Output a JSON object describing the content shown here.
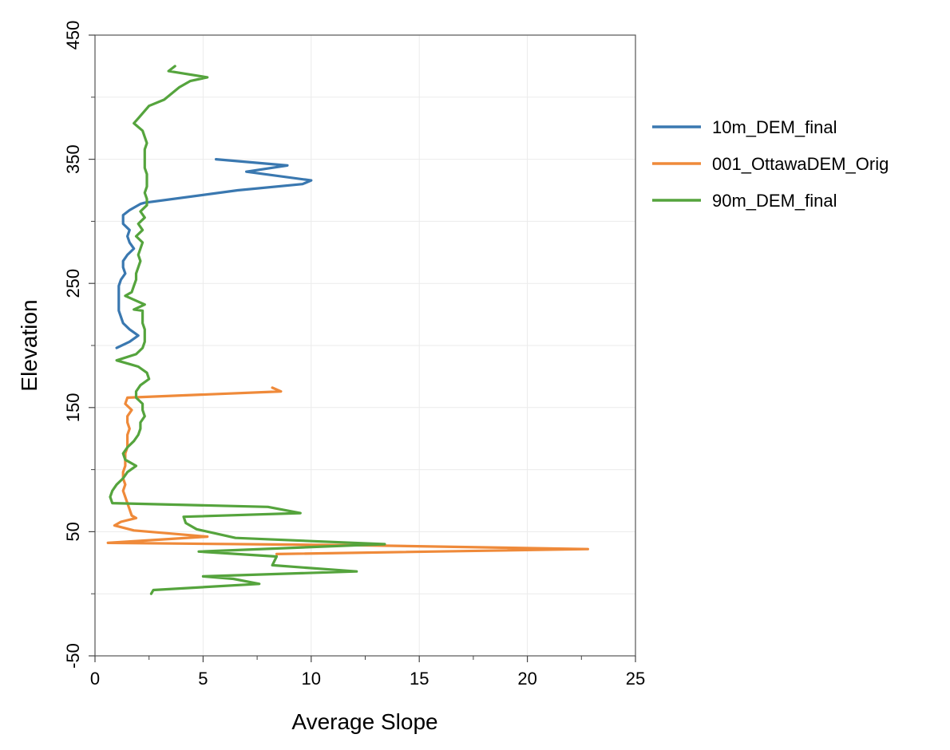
{
  "chart_data": {
    "type": "line",
    "title": "",
    "xlabel": "Average Slope",
    "ylabel": "Elevation",
    "xlim": [
      0,
      25
    ],
    "ylim": [
      -50,
      450
    ],
    "xticks": [
      0,
      5,
      10,
      15,
      20,
      25
    ],
    "yticks": [
      -50,
      50,
      150,
      250,
      350,
      450
    ],
    "grid": true,
    "legend_position": "right",
    "series": [
      {
        "name": "10m_DEM_final",
        "color": "#3a78b0",
        "points": [
          [
            5.6,
            350
          ],
          [
            8.9,
            345
          ],
          [
            7.0,
            340
          ],
          [
            10.0,
            333
          ],
          [
            9.6,
            330
          ],
          [
            6.6,
            325
          ],
          [
            2.3,
            315
          ],
          [
            2.1,
            314
          ],
          [
            1.6,
            309
          ],
          [
            1.3,
            305
          ],
          [
            1.3,
            298
          ],
          [
            1.6,
            293
          ],
          [
            1.5,
            288
          ],
          [
            1.6,
            283
          ],
          [
            1.8,
            278
          ],
          [
            1.5,
            273
          ],
          [
            1.3,
            268
          ],
          [
            1.3,
            263
          ],
          [
            1.4,
            258
          ],
          [
            1.2,
            253
          ],
          [
            1.1,
            248
          ],
          [
            1.1,
            243
          ],
          [
            1.1,
            238
          ],
          [
            1.1,
            233
          ],
          [
            1.1,
            228
          ],
          [
            1.2,
            223
          ],
          [
            1.3,
            218
          ],
          [
            1.6,
            213
          ],
          [
            2.0,
            208
          ],
          [
            1.6,
            203
          ],
          [
            1.0,
            198
          ]
        ]
      },
      {
        "name": "001_OttawaDEM_Orig",
        "color": "#ef8a3a",
        "points": [
          [
            8.2,
            166
          ],
          [
            8.6,
            163
          ],
          [
            1.5,
            158
          ],
          [
            1.4,
            153
          ],
          [
            1.7,
            148
          ],
          [
            1.5,
            143
          ],
          [
            1.5,
            138
          ],
          [
            1.6,
            133
          ],
          [
            1.5,
            128
          ],
          [
            1.5,
            123
          ],
          [
            1.5,
            118
          ],
          [
            1.4,
            113
          ],
          [
            1.4,
            108
          ],
          [
            1.4,
            103
          ],
          [
            1.3,
            98
          ],
          [
            1.3,
            93
          ],
          [
            1.4,
            88
          ],
          [
            1.3,
            83
          ],
          [
            1.4,
            78
          ],
          [
            1.5,
            73
          ],
          [
            1.6,
            68
          ],
          [
            1.7,
            63
          ],
          [
            1.9,
            61
          ],
          [
            1.2,
            58
          ],
          [
            0.9,
            55
          ],
          [
            1.8,
            51
          ],
          [
            5.2,
            46
          ],
          [
            0.6,
            41
          ],
          [
            12.5,
            39
          ],
          [
            22.8,
            36
          ],
          [
            8.4,
            32
          ]
        ]
      },
      {
        "name": "90m_DEM_final",
        "color": "#55a43d",
        "points": [
          [
            3.7,
            425
          ],
          [
            3.4,
            421
          ],
          [
            5.2,
            416
          ],
          [
            4.4,
            413
          ],
          [
            3.9,
            408
          ],
          [
            3.2,
            398
          ],
          [
            2.5,
            393
          ],
          [
            2.0,
            383
          ],
          [
            1.8,
            379
          ],
          [
            2.2,
            373
          ],
          [
            2.3,
            368
          ],
          [
            2.4,
            363
          ],
          [
            2.3,
            358
          ],
          [
            2.3,
            353
          ],
          [
            2.3,
            348
          ],
          [
            2.3,
            343
          ],
          [
            2.4,
            338
          ],
          [
            2.4,
            333
          ],
          [
            2.4,
            328
          ],
          [
            2.3,
            323
          ],
          [
            2.4,
            318
          ],
          [
            2.4,
            313
          ],
          [
            2.1,
            308
          ],
          [
            2.3,
            303
          ],
          [
            2.0,
            298
          ],
          [
            2.2,
            293
          ],
          [
            1.9,
            288
          ],
          [
            2.2,
            283
          ],
          [
            2.1,
            278
          ],
          [
            2.0,
            273
          ],
          [
            2.1,
            268
          ],
          [
            2.0,
            263
          ],
          [
            1.9,
            258
          ],
          [
            1.9,
            253
          ],
          [
            1.8,
            248
          ],
          [
            1.7,
            243
          ],
          [
            1.4,
            240
          ],
          [
            2.3,
            233
          ],
          [
            1.8,
            229
          ],
          [
            2.2,
            228
          ],
          [
            2.2,
            223
          ],
          [
            2.2,
            218
          ],
          [
            2.3,
            213
          ],
          [
            2.3,
            208
          ],
          [
            2.3,
            203
          ],
          [
            2.2,
            198
          ],
          [
            1.9,
            193
          ],
          [
            1.0,
            188
          ],
          [
            1.6,
            185
          ],
          [
            2.0,
            183
          ],
          [
            2.4,
            178
          ],
          [
            2.5,
            173
          ],
          [
            2.1,
            168
          ],
          [
            1.9,
            163
          ],
          [
            1.9,
            158
          ],
          [
            2.2,
            153
          ],
          [
            2.2,
            148
          ],
          [
            2.3,
            143
          ],
          [
            2.1,
            138
          ],
          [
            2.1,
            133
          ],
          [
            2.0,
            128
          ],
          [
            1.8,
            123
          ],
          [
            1.5,
            118
          ],
          [
            1.3,
            113
          ],
          [
            1.4,
            108
          ],
          [
            1.9,
            103
          ],
          [
            1.5,
            98
          ],
          [
            1.3,
            93
          ],
          [
            1.0,
            88
          ],
          [
            0.8,
            83
          ],
          [
            0.7,
            78
          ],
          [
            0.8,
            73
          ],
          [
            8.0,
            70
          ],
          [
            9.5,
            65
          ],
          [
            4.1,
            62
          ],
          [
            4.2,
            57
          ],
          [
            4.7,
            52
          ],
          [
            6.5,
            45
          ],
          [
            13.4,
            40
          ],
          [
            4.8,
            34
          ],
          [
            8.4,
            30
          ],
          [
            8.2,
            23
          ],
          [
            12.1,
            18
          ],
          [
            5.0,
            14
          ],
          [
            6.4,
            12
          ],
          [
            7.6,
            8
          ],
          [
            2.7,
            3
          ],
          [
            2.6,
            0
          ]
        ]
      }
    ]
  }
}
